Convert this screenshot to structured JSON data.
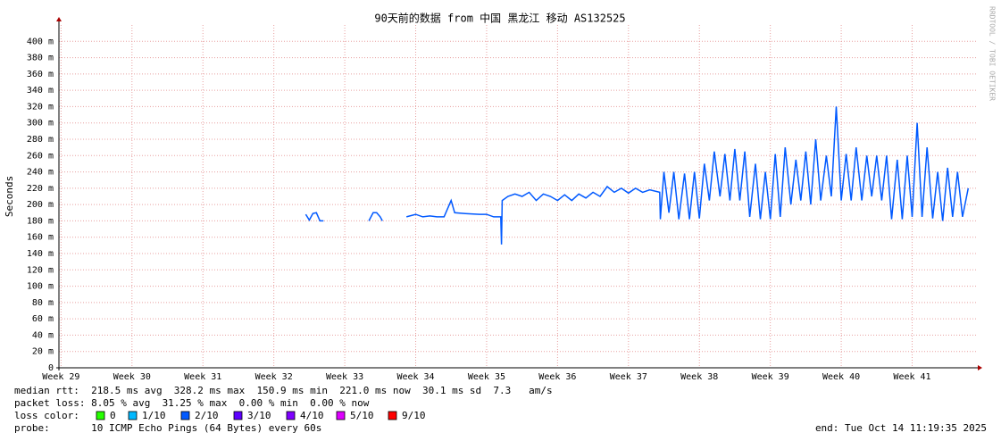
{
  "chart_data": {
    "type": "line",
    "title": "90天前的数据 from 中国 黑龙江 移动 AS132525",
    "y_label": "Seconds",
    "side_text": "RRDTOOL / TOBI OETIKER",
    "xlim": [
      28.97,
      41.9
    ],
    "xticks": [
      {
        "value": 29,
        "label": "Week 29"
      },
      {
        "value": 30,
        "label": "Week 30"
      },
      {
        "value": 31,
        "label": "Week 31"
      },
      {
        "value": 32,
        "label": "Week 32"
      },
      {
        "value": 33,
        "label": "Week 33"
      },
      {
        "value": 34,
        "label": "Week 34"
      },
      {
        "value": 35,
        "label": "Week 35"
      },
      {
        "value": 36,
        "label": "Week 36"
      },
      {
        "value": 37,
        "label": "Week 37"
      },
      {
        "value": 38,
        "label": "Week 38"
      },
      {
        "value": 39,
        "label": "Week 39"
      },
      {
        "value": 40,
        "label": "Week 40"
      },
      {
        "value": 41,
        "label": "Week 41"
      }
    ],
    "ylim": [
      0,
      0.42
    ],
    "yticks": [
      0,
      {
        "value": 0.02,
        "label": "20 m"
      },
      {
        "value": 0.04,
        "label": "40 m"
      },
      {
        "value": 0.06,
        "label": "60 m"
      },
      {
        "value": 0.08,
        "label": "80 m"
      },
      {
        "value": 0.1,
        "label": "100 m"
      },
      {
        "value": 0.12,
        "label": "120 m"
      },
      {
        "value": 0.14,
        "label": "140 m"
      },
      {
        "value": 0.16,
        "label": "160 m"
      },
      {
        "value": 0.18,
        "label": "180 m"
      },
      {
        "value": 0.2,
        "label": "200 m"
      },
      {
        "value": 0.22,
        "label": "220 m"
      },
      {
        "value": 0.24,
        "label": "240 m"
      },
      {
        "value": 0.26,
        "label": "260 m"
      },
      {
        "value": 0.28,
        "label": "280 m"
      },
      {
        "value": 0.3,
        "label": "300 m"
      },
      {
        "value": 0.32,
        "label": "320 m"
      },
      {
        "value": 0.34,
        "label": "340 m"
      },
      {
        "value": 0.36,
        "label": "360 m"
      },
      {
        "value": 0.38,
        "label": "380 m"
      },
      {
        "value": 0.4,
        "label": "400 m"
      }
    ],
    "grid": true,
    "x": [
      32.45,
      32.5,
      32.55,
      32.6,
      32.65,
      32.7,
      32.8,
      32.87,
      33.0,
      33.34,
      33.4,
      33.45,
      33.5,
      33.53,
      33.7,
      33.87,
      34.0,
      34.1,
      34.2,
      34.3,
      34.4,
      34.5,
      34.55,
      34.7,
      34.9,
      35.0,
      35.1,
      35.2,
      35.21,
      35.22,
      35.3,
      35.4,
      35.5,
      35.6,
      35.7,
      35.8,
      35.9,
      36.0,
      36.1,
      36.2,
      36.3,
      36.4,
      36.5,
      36.6,
      36.7,
      36.8,
      36.9,
      37.0,
      37.1,
      37.2,
      37.3,
      37.44,
      37.45,
      37.5,
      37.57,
      37.64,
      37.71,
      37.79,
      37.86,
      37.93,
      38.0,
      38.07,
      38.14,
      38.21,
      38.29,
      38.36,
      38.43,
      38.5,
      38.57,
      38.64,
      38.71,
      38.79,
      38.86,
      38.93,
      39.0,
      39.07,
      39.14,
      39.21,
      39.29,
      39.36,
      39.43,
      39.5,
      39.57,
      39.64,
      39.71,
      39.79,
      39.86,
      39.93,
      40.0,
      40.07,
      40.14,
      40.21,
      40.29,
      40.36,
      40.43,
      40.5,
      40.57,
      40.64,
      40.71,
      40.79,
      40.86,
      40.93,
      41.0,
      41.07,
      41.14,
      41.21,
      41.29,
      41.36,
      41.43,
      41.5,
      41.57,
      41.64,
      41.71,
      41.79
    ],
    "series": [
      {
        "color": "#0059ff",
        "values": [
          0.188,
          0.181,
          0.189,
          0.19,
          0.18,
          0.18,
          null,
          0.188,
          null,
          0.18,
          0.19,
          0.19,
          0.185,
          0.18,
          null,
          0.185,
          0.188,
          0.185,
          0.186,
          0.185,
          0.185,
          0.205,
          0.19,
          0.189,
          0.188,
          0.188,
          0.185,
          0.185,
          0.151,
          0.205,
          0.21,
          0.213,
          0.21,
          0.215,
          0.205,
          0.213,
          0.21,
          0.205,
          0.212,
          0.205,
          0.213,
          0.208,
          0.215,
          0.21,
          0.222,
          0.215,
          0.22,
          0.214,
          0.22,
          0.215,
          0.218,
          0.215,
          0.182,
          0.24,
          0.19,
          0.24,
          0.182,
          0.238,
          0.182,
          0.24,
          0.183,
          0.25,
          0.205,
          0.265,
          0.21,
          0.262,
          0.205,
          0.268,
          0.205,
          0.265,
          0.185,
          0.25,
          0.182,
          0.24,
          0.182,
          0.262,
          0.185,
          0.27,
          0.2,
          0.255,
          0.205,
          0.265,
          0.2,
          0.28,
          0.205,
          0.26,
          0.21,
          0.32,
          0.205,
          0.262,
          0.205,
          0.27,
          0.205,
          0.26,
          0.21,
          0.26,
          0.205,
          0.26,
          0.182,
          0.255,
          0.182,
          0.26,
          0.185,
          0.3,
          0.185,
          0.27,
          0.183,
          0.24,
          0.18,
          0.245,
          0.185,
          0.24,
          0.185,
          0.22
        ]
      }
    ],
    "stats": [
      "median rtt:  218.5 ms avg  328.2 ms max  150.9 ms min  221.0 ms now  30.1 ms sd  7.3   am/s",
      "packet loss: 8.05 % avg  31.25 % max  0.00 % min  0.00 % now"
    ],
    "loss_color_label": "loss color:",
    "loss_colors": [
      {
        "label": "0",
        "color": "#26ff00"
      },
      {
        "label": "1/10",
        "color": "#00b8ff"
      },
      {
        "label": "2/10",
        "color": "#0059ff"
      },
      {
        "label": "3/10",
        "color": "#5e00ff"
      },
      {
        "label": "4/10",
        "color": "#7e00ff"
      },
      {
        "label": "5/10",
        "color": "#dd00ff"
      },
      {
        "label": "9/10",
        "color": "#ff0000"
      }
    ],
    "probe": "probe:       10 ICMP Echo Pings (64 Bytes) every 60s",
    "end": "end: Tue Oct 14 11:19:35 2025"
  }
}
